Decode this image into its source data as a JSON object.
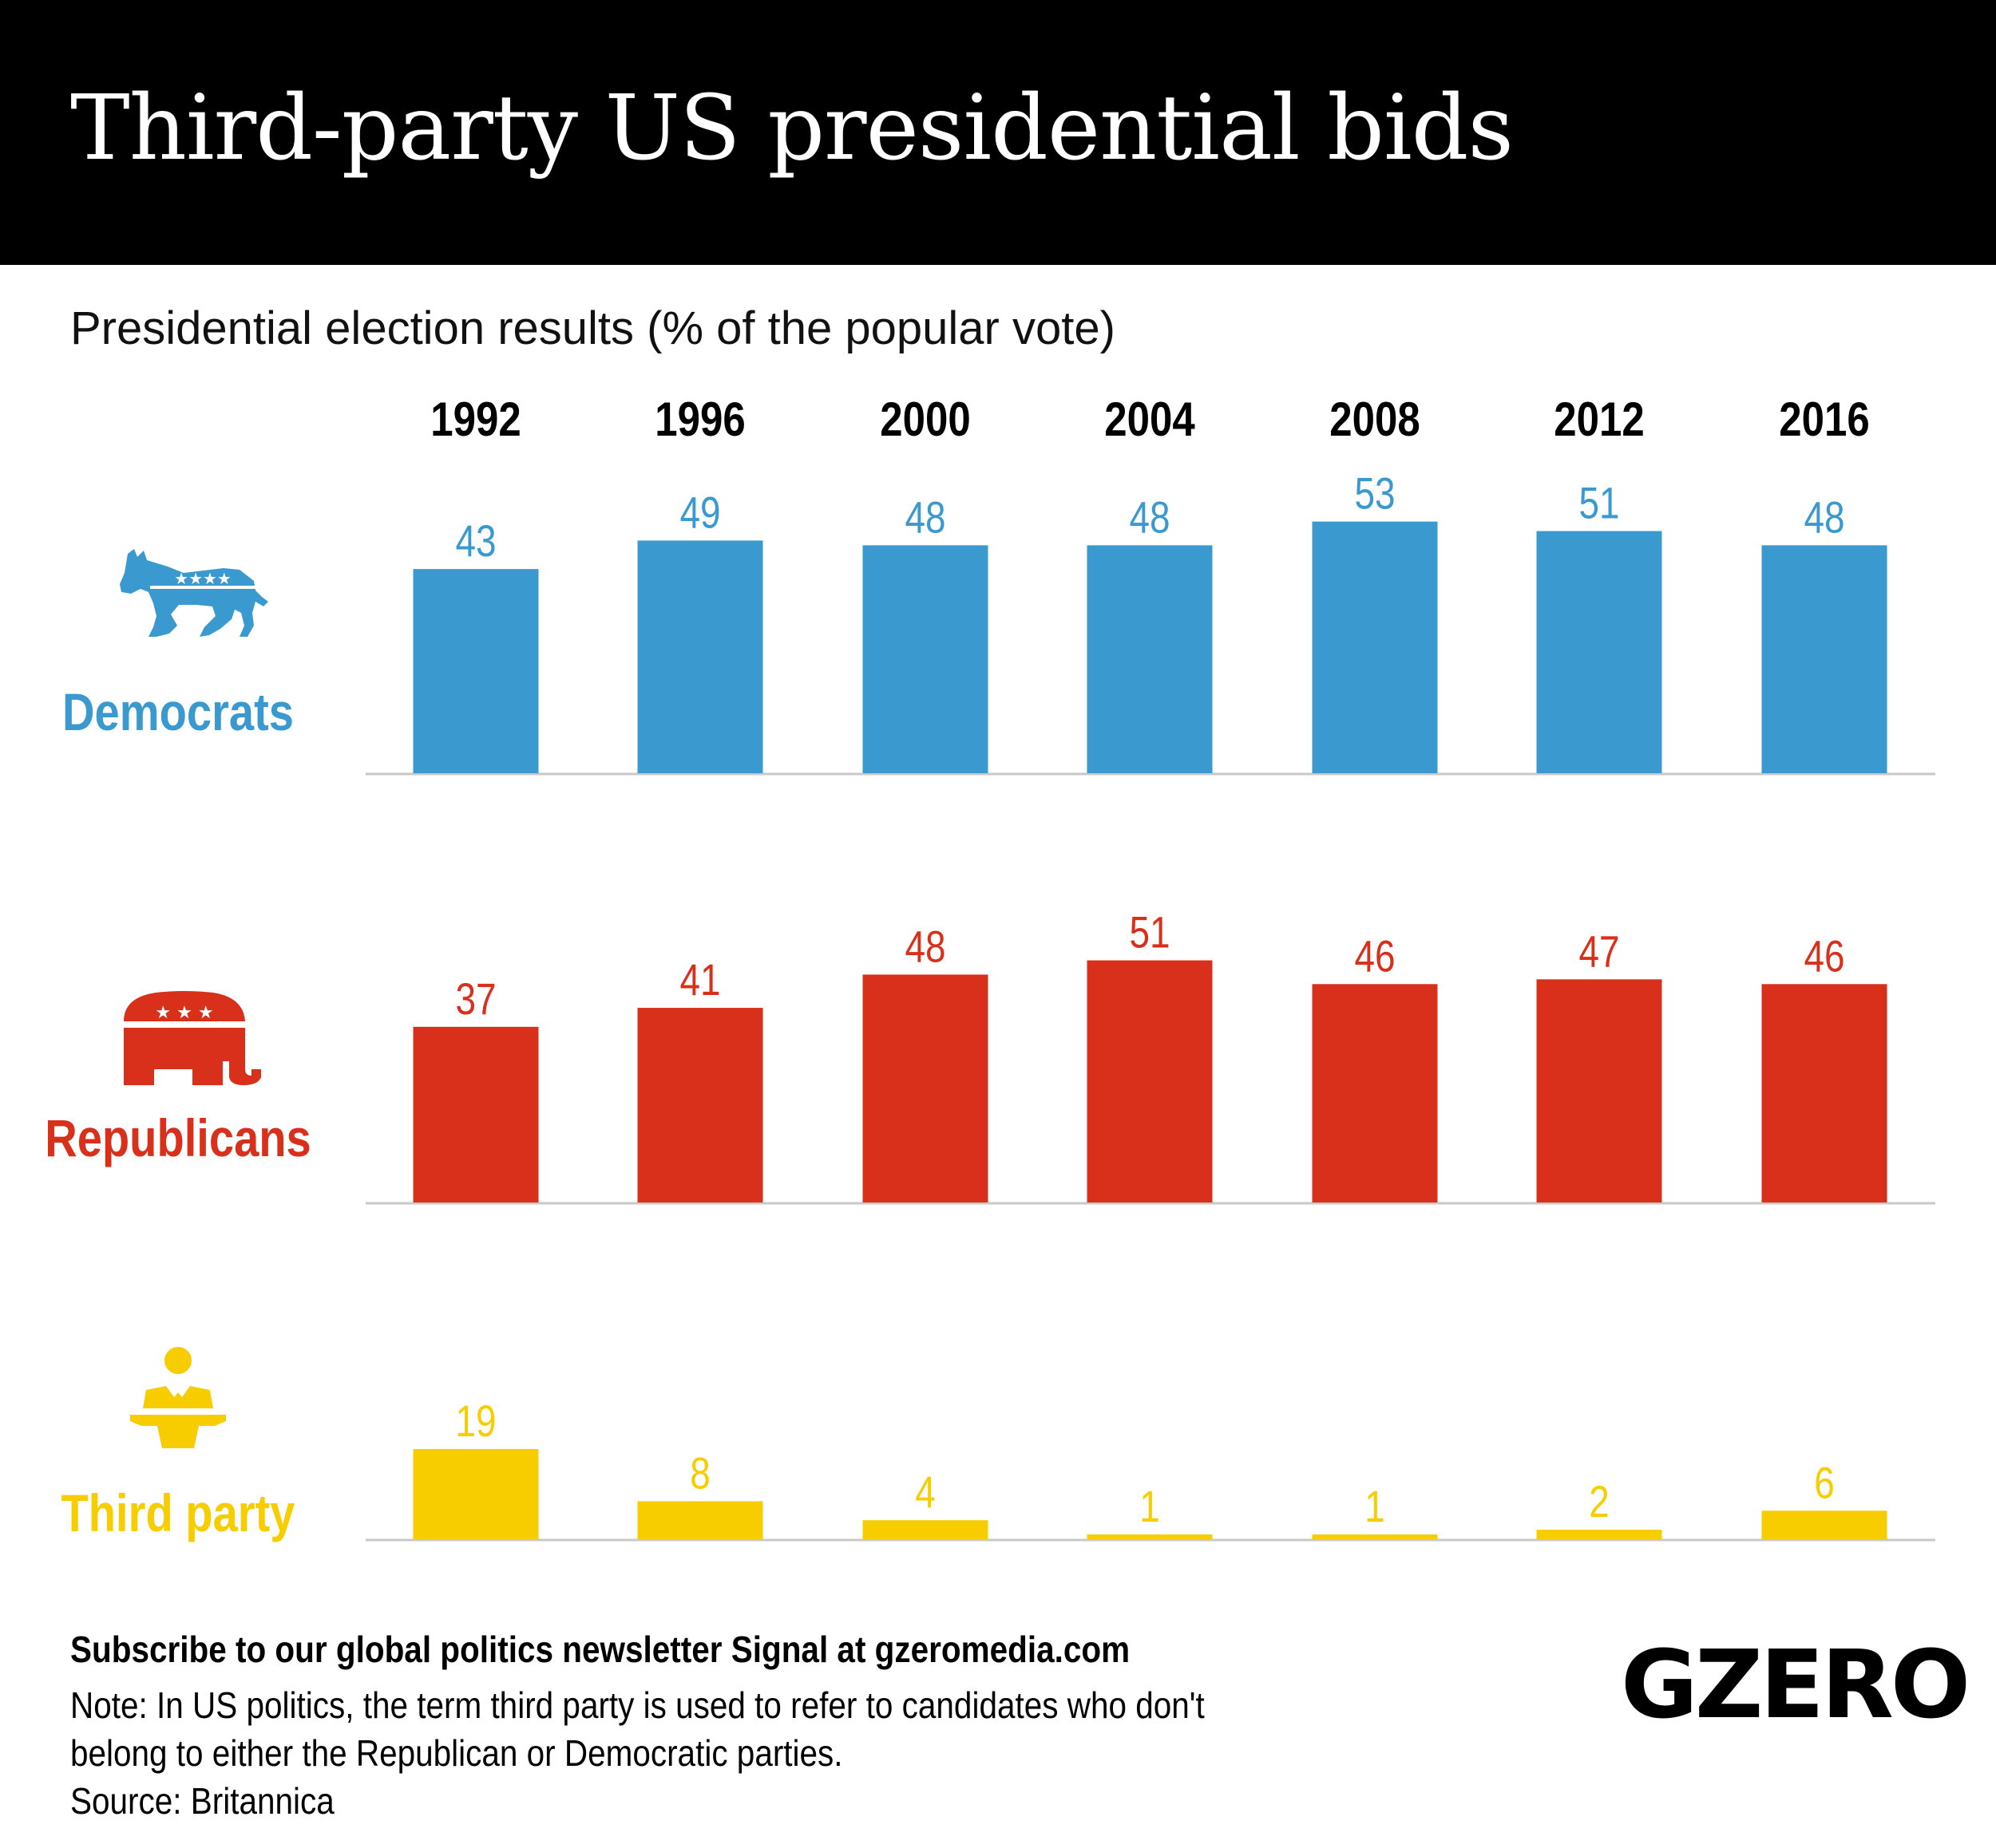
{
  "title": "Third-party US presidential bids",
  "subtitle": "Presidential election results (% of the popular vote)",
  "chart_data": {
    "type": "bar",
    "categories": [
      "1992",
      "1996",
      "2000",
      "2004",
      "2008",
      "2012",
      "2016"
    ],
    "series": [
      {
        "name": "Democrats",
        "icon": "donkey-icon",
        "color": "#3a99cf",
        "values": [
          43,
          49,
          48,
          48,
          53,
          51,
          48
        ]
      },
      {
        "name": "Republicans",
        "icon": "elephant-icon",
        "color": "#d9301c",
        "values": [
          37,
          41,
          48,
          51,
          46,
          47,
          46
        ]
      },
      {
        "name": "Third party",
        "icon": "podium-speaker-icon",
        "color": "#f8cd00",
        "values": [
          19,
          8,
          4,
          1,
          1,
          2,
          6
        ]
      }
    ],
    "layout": "small-multiples",
    "grid": false,
    "data_labels": true
  },
  "footer": {
    "subscribe": "Subscribe to our global politics newsletter Signal at gzeromedia.com",
    "note_line1": "Note: In US politics, the term third party is used to refer to candidates who don't",
    "note_line2": "belong to either the Republican or Democratic parties.",
    "source": "Source: Britannica",
    "logo": "GZERO"
  }
}
